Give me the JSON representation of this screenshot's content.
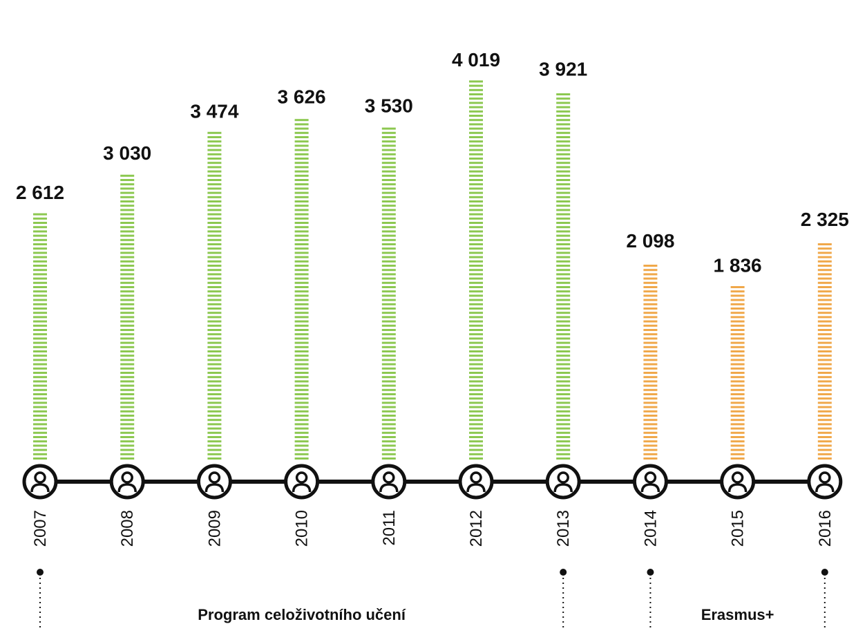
{
  "chart_data": {
    "type": "bar",
    "categories": [
      "2007",
      "2008",
      "2009",
      "2010",
      "2011",
      "2012",
      "2013",
      "2014",
      "2015",
      "2016"
    ],
    "values": [
      2612,
      3030,
      3474,
      3626,
      3530,
      4019,
      3921,
      2098,
      1836,
      2325
    ],
    "value_labels": [
      "2 612",
      "3 030",
      "3 474",
      "3 626",
      "3 530",
      "4 019",
      "3 921",
      "2 098",
      "1 836",
      "2 325"
    ],
    "title": "",
    "xlabel": "",
    "ylabel": "",
    "ylim": [
      0,
      4400
    ],
    "grid": false,
    "programs": [
      {
        "label": "Program celoživotního učení",
        "from": "2007",
        "to": "2013",
        "color": "#8cc850"
      },
      {
        "label": "Erasmus+",
        "from": "2014",
        "to": "2016",
        "color": "#f0a84a"
      }
    ],
    "colors": {
      "green": "#8cc850",
      "orange": "#f0a84a",
      "axis": "#111111",
      "icon": "#111111"
    },
    "icon": "person-icon"
  }
}
